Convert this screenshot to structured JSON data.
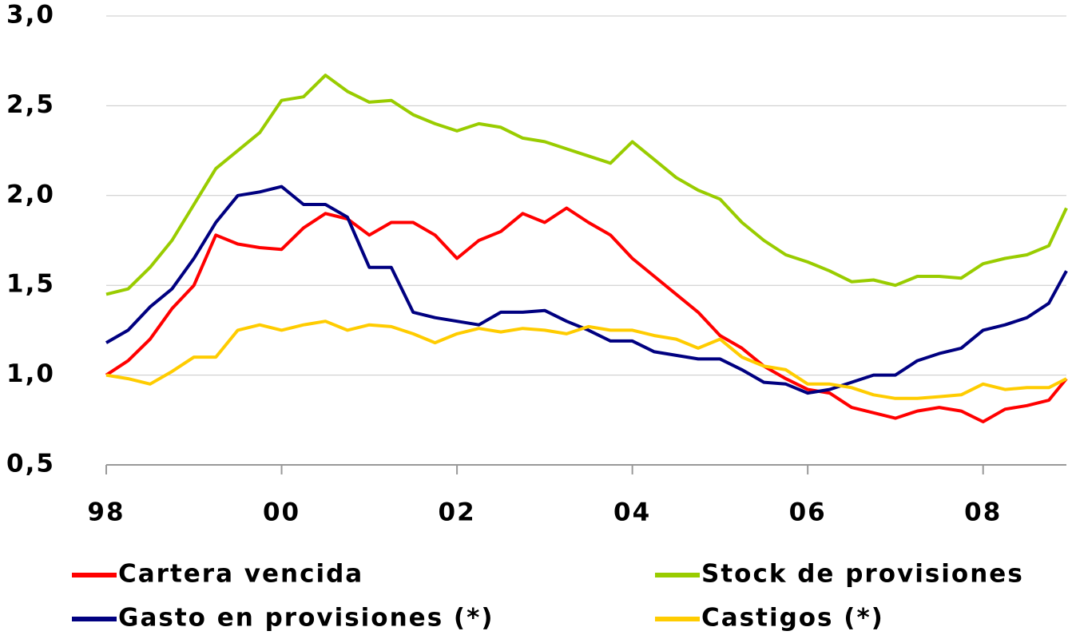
{
  "chart_data": {
    "type": "line",
    "x": [
      1998,
      1998.25,
      1998.5,
      1998.75,
      1999,
      1999.25,
      1999.5,
      1999.75,
      2000,
      2000.25,
      2000.5,
      2000.75,
      2001,
      2001.25,
      2001.5,
      2001.75,
      2002,
      2002.25,
      2002.5,
      2002.75,
      2003,
      2003.25,
      2003.5,
      2003.75,
      2004,
      2004.25,
      2004.5,
      2004.75,
      2005,
      2005.25,
      2005.5,
      2005.75,
      2006,
      2006.25,
      2006.5,
      2006.75,
      2007,
      2007.25,
      2007.5,
      2007.75,
      2008,
      2008.25,
      2008.5,
      2008.75,
      2008.95
    ],
    "series": [
      {
        "name": "Cartera vencida",
        "color": "#ff0000",
        "values": [
          1.0,
          1.08,
          1.2,
          1.37,
          1.5,
          1.78,
          1.73,
          1.71,
          1.7,
          1.82,
          1.9,
          1.87,
          1.78,
          1.85,
          1.85,
          1.78,
          1.65,
          1.75,
          1.8,
          1.9,
          1.85,
          1.93,
          1.85,
          1.78,
          1.65,
          1.55,
          1.45,
          1.35,
          1.22,
          1.15,
          1.05,
          0.98,
          0.92,
          0.9,
          0.82,
          0.79,
          0.76,
          0.8,
          0.82,
          0.8,
          0.74,
          0.81,
          0.83,
          0.86,
          0.98
        ]
      },
      {
        "name": "Stock de provisiones",
        "color": "#99cc00",
        "values": [
          1.45,
          1.48,
          1.6,
          1.75,
          1.95,
          2.15,
          2.25,
          2.35,
          2.53,
          2.55,
          2.67,
          2.58,
          2.52,
          2.53,
          2.45,
          2.4,
          2.36,
          2.4,
          2.38,
          2.32,
          2.3,
          2.26,
          2.22,
          2.18,
          2.3,
          2.2,
          2.1,
          2.03,
          1.98,
          1.85,
          1.75,
          1.67,
          1.63,
          1.58,
          1.52,
          1.53,
          1.5,
          1.55,
          1.55,
          1.54,
          1.62,
          1.65,
          1.67,
          1.72,
          1.93
        ]
      },
      {
        "name": "Gasto en provisiones (*)",
        "color": "#000080",
        "values": [
          1.18,
          1.25,
          1.38,
          1.48,
          1.65,
          1.85,
          2.0,
          2.02,
          2.05,
          1.95,
          1.95,
          1.88,
          1.6,
          1.6,
          1.35,
          1.32,
          1.3,
          1.28,
          1.35,
          1.35,
          1.36,
          1.3,
          1.25,
          1.19,
          1.19,
          1.13,
          1.11,
          1.09,
          1.09,
          1.03,
          0.96,
          0.95,
          0.9,
          0.92,
          0.96,
          1.0,
          1.0,
          1.08,
          1.12,
          1.15,
          1.25,
          1.28,
          1.32,
          1.4,
          1.58
        ]
      },
      {
        "name": "Castigos (*)",
        "color": "#ffcc00",
        "values": [
          1.0,
          0.98,
          0.95,
          1.02,
          1.1,
          1.1,
          1.25,
          1.28,
          1.25,
          1.28,
          1.3,
          1.25,
          1.28,
          1.27,
          1.23,
          1.18,
          1.23,
          1.26,
          1.24,
          1.26,
          1.25,
          1.23,
          1.27,
          1.25,
          1.25,
          1.22,
          1.2,
          1.15,
          1.2,
          1.1,
          1.05,
          1.03,
          0.95,
          0.95,
          0.93,
          0.89,
          0.87,
          0.87,
          0.88,
          0.89,
          0.95,
          0.92,
          0.93,
          0.93,
          0.98
        ]
      }
    ],
    "xlim": [
      1998,
      2008.95
    ],
    "xticks": [
      {
        "value": 1998,
        "label": "98"
      },
      {
        "value": 2000,
        "label": "00"
      },
      {
        "value": 2002,
        "label": "02"
      },
      {
        "value": 2004,
        "label": "04"
      },
      {
        "value": 2006,
        "label": "06"
      },
      {
        "value": 2008,
        "label": "08"
      }
    ],
    "ylim": [
      0.5,
      3
    ],
    "yticks": [
      {
        "value": 0.5,
        "label": "0,5"
      },
      {
        "value": 1,
        "label": "1,0"
      },
      {
        "value": 1.5,
        "label": "1,5"
      },
      {
        "value": 2,
        "label": "2,0"
      },
      {
        "value": 2.5,
        "label": "2,5"
      },
      {
        "value": 3,
        "label": "3,0"
      }
    ],
    "grid": true,
    "legend": "bottom"
  }
}
